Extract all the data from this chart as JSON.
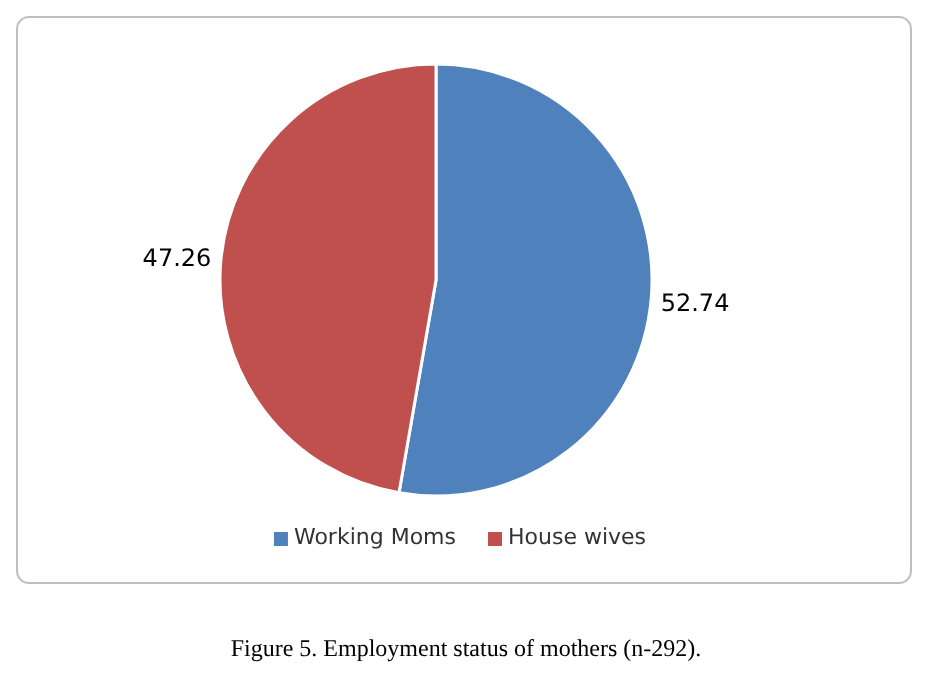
{
  "chart_data": {
    "type": "pie",
    "categories": [
      "Working Moms",
      "House wives"
    ],
    "values": [
      52.74,
      47.26
    ],
    "colors": [
      "#4f81bd",
      "#c0504d"
    ],
    "data_labels": true,
    "legend": "bottom",
    "annotations": [
      "Figure 5. Employment status of mothers (n-292)."
    ]
  }
}
